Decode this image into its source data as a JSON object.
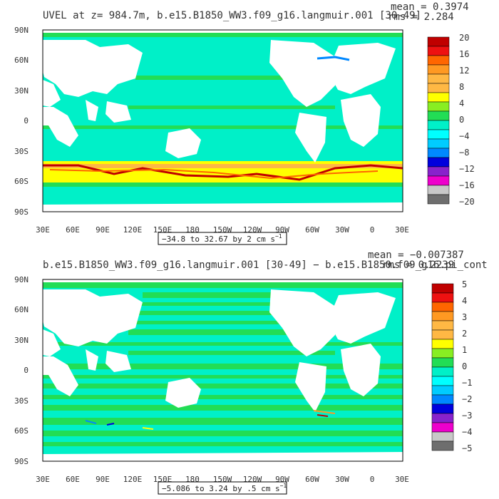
{
  "panel1": {
    "title": "UVEL at z= 984.7m, b.e15.B1850_WW3.f09_g16.langmuir.001 [30-49]",
    "stat_mean": "mean = 0.3974",
    "stat_rms": "rms = 2.284",
    "range_label": "−34.8 to 32.67 by 2 cm s",
    "range_unit_exp": "−1",
    "colorbar_labels": [
      "20",
      "16",
      "12",
      "8",
      "4",
      "0",
      "−4",
      "−8",
      "−12",
      "−16",
      "−20"
    ]
  },
  "panel2": {
    "title": "b.e15.B1850_WW3.f09_g16.langmuir.001 [30-49] − b.e15.B1850.f09_g16.pi_cont",
    "stat_mean": "mean = −0.007387",
    "stat_rms": "rms = 0.2239",
    "range_label": "−5.086 to 3.24 by .5 cm s",
    "range_unit_exp": "−1",
    "colorbar_labels": [
      "5",
      "4",
      "3",
      "2",
      "1",
      "0",
      "−1",
      "−2",
      "−3",
      "−4",
      "−5"
    ]
  },
  "lat_labels": [
    "90N",
    "60N",
    "30N",
    "0",
    "30S",
    "60S",
    "90S"
  ],
  "lon_labels": [
    "30E",
    "60E",
    "90E",
    "120E",
    "150E",
    "180",
    "150W",
    "120W",
    "90W",
    "60W",
    "30W",
    "0",
    "30E"
  ],
  "colors": {
    "colorbar": [
      "#c00000",
      "#ee1111",
      "#ff6600",
      "#ff9922",
      "#ffb844",
      "#ffff00",
      "#88ee22",
      "#22dd55",
      "#00f0c8",
      "#00ffff",
      "#00ccff",
      "#0088ff",
      "#0000dd",
      "#8822cc",
      "#ee00cc",
      "#c8c8c8",
      "#6e6e6e"
    ],
    "ocean_bg": "#00f0c8",
    "ocean_band": "#22dd55",
    "land": "#ffffff"
  }
}
